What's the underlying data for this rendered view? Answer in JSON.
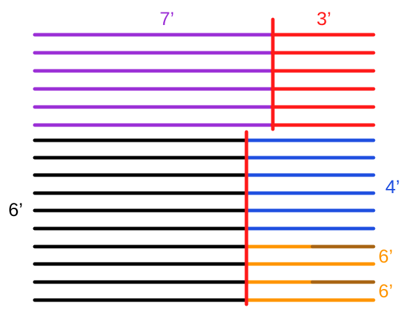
{
  "labels": {
    "purple": "7’",
    "red": "3’",
    "black": "6’",
    "blue": "4’",
    "orange_top": "6’",
    "orange_bottom": "6’"
  },
  "colors": {
    "purple": "#9b2fd6",
    "red": "#ff1a1a",
    "black": "#000000",
    "blue": "#1f4fe0",
    "orange": "#ff9500",
    "brown": "#a86412",
    "background": "#ffffff"
  }
}
